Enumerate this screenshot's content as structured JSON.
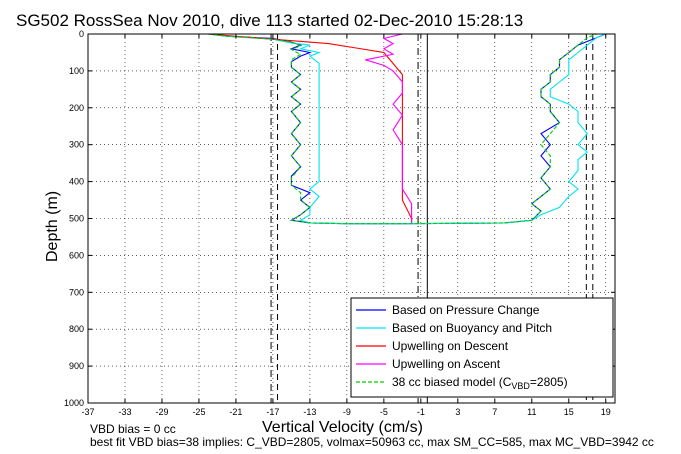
{
  "chart_data": {
    "type": "line",
    "title": "SG502 RossSea Nov 2010, dive 113 started 02-Dec-2010 15:28:13",
    "xlabel": "Vertical Velocity (cm/s)",
    "ylabel": "Depth (m)",
    "xlim": [
      -37,
      20
    ],
    "ylim": [
      1000,
      0
    ],
    "y_reversed": true,
    "grid": true,
    "xticks": [
      -37,
      -33,
      -29,
      -25,
      -21,
      -17,
      -13,
      -9,
      -5,
      -1,
      3,
      7,
      11,
      15,
      19
    ],
    "yticks": [
      0,
      100,
      200,
      300,
      400,
      500,
      600,
      700,
      800,
      900,
      1000
    ],
    "legend_position": "bottom-right",
    "series": [
      {
        "name": "Based on Pressure Change",
        "color": "#0000ff",
        "points": [
          [
            -24,
            0
          ],
          [
            -22,
            6
          ],
          [
            -17,
            12
          ],
          [
            -15,
            22
          ],
          [
            -14,
            30
          ],
          [
            -15,
            40
          ],
          [
            -13,
            50
          ],
          [
            -14,
            60
          ],
          [
            -15,
            75
          ],
          [
            -15,
            90
          ],
          [
            -14,
            110
          ],
          [
            -15,
            130
          ],
          [
            -14,
            150
          ],
          [
            -15,
            170
          ],
          [
            -14,
            190
          ],
          [
            -15,
            210
          ],
          [
            -14,
            240
          ],
          [
            -15,
            270
          ],
          [
            -14,
            300
          ],
          [
            -15,
            330
          ],
          [
            -14,
            360
          ],
          [
            -15,
            385
          ],
          [
            -15,
            410
          ],
          [
            -13,
            430
          ],
          [
            -14,
            450
          ],
          [
            -13,
            470
          ],
          [
            -14,
            490
          ],
          [
            -15,
            505
          ],
          [
            -13,
            512
          ],
          [
            -9,
            514
          ],
          [
            -3,
            514
          ],
          [
            3,
            513
          ],
          [
            8,
            512
          ],
          [
            11,
            505
          ],
          [
            12,
            480
          ],
          [
            11,
            460
          ],
          [
            12,
            440
          ],
          [
            13,
            420
          ],
          [
            12,
            390
          ],
          [
            13,
            360
          ],
          [
            12,
            330
          ],
          [
            13,
            300
          ],
          [
            12,
            270
          ],
          [
            14,
            240
          ],
          [
            13,
            210
          ],
          [
            13,
            190
          ],
          [
            12,
            170
          ],
          [
            12,
            150
          ],
          [
            13,
            130
          ],
          [
            13,
            110
          ],
          [
            14,
            90
          ],
          [
            14,
            70
          ],
          [
            15,
            50
          ],
          [
            16,
            30
          ],
          [
            18,
            10
          ],
          [
            19,
            0
          ]
        ]
      },
      {
        "name": "Based on Buoyancy and Pitch",
        "color": "#00e5ee",
        "points": [
          [
            -24,
            0
          ],
          [
            -22,
            6
          ],
          [
            -17,
            14
          ],
          [
            -15,
            24
          ],
          [
            -13,
            30
          ],
          [
            -14,
            40
          ],
          [
            -12,
            50
          ],
          [
            -13,
            60
          ],
          [
            -12,
            80
          ],
          [
            -12,
            100
          ],
          [
            -12,
            130
          ],
          [
            -12,
            160
          ],
          [
            -12,
            190
          ],
          [
            -12,
            220
          ],
          [
            -12,
            260
          ],
          [
            -12,
            300
          ],
          [
            -12,
            340
          ],
          [
            -12,
            370
          ],
          [
            -12,
            400
          ],
          [
            -13,
            420
          ],
          [
            -12,
            440
          ],
          [
            -13,
            470
          ],
          [
            -13,
            490
          ],
          [
            -14,
            505
          ],
          [
            -13,
            512
          ],
          [
            -9,
            514
          ],
          [
            -3,
            514
          ],
          [
            3,
            513
          ],
          [
            8,
            512
          ],
          [
            11,
            505
          ],
          [
            12,
            490
          ],
          [
            14,
            470
          ],
          [
            15,
            440
          ],
          [
            16,
            420
          ],
          [
            15,
            400
          ],
          [
            16,
            370
          ],
          [
            16,
            340
          ],
          [
            17,
            320
          ],
          [
            16,
            300
          ],
          [
            17,
            270
          ],
          [
            16,
            240
          ],
          [
            16,
            210
          ],
          [
            15,
            190
          ],
          [
            13,
            170
          ],
          [
            13,
            150
          ],
          [
            14,
            130
          ],
          [
            15,
            110
          ],
          [
            15,
            90
          ],
          [
            15,
            70
          ],
          [
            16,
            50
          ],
          [
            17,
            30
          ],
          [
            18,
            10
          ],
          [
            19,
            0
          ]
        ]
      },
      {
        "name": "Upwelling on Descent",
        "color": "#ff0000",
        "points": [
          [
            -24,
            0
          ],
          [
            -20,
            8
          ],
          [
            -16,
            16
          ],
          [
            -11,
            26
          ],
          [
            -8,
            38
          ],
          [
            -5,
            50
          ],
          [
            -4,
            80
          ],
          [
            -3,
            110
          ],
          [
            -3,
            150
          ],
          [
            -3,
            200
          ],
          [
            -3,
            250
          ],
          [
            -3,
            300
          ],
          [
            -3,
            350
          ],
          [
            -3,
            400
          ],
          [
            -3,
            450
          ],
          [
            -2,
            500
          ],
          [
            -2,
            512
          ]
        ]
      },
      {
        "name": "Upwelling on Ascent",
        "color": "#ff00ff",
        "points": [
          [
            -3,
            0
          ],
          [
            -5,
            12
          ],
          [
            -4,
            26
          ],
          [
            -5,
            40
          ],
          [
            -4,
            55
          ],
          [
            -7,
            70
          ],
          [
            -5,
            85
          ],
          [
            -4,
            100
          ],
          [
            -3,
            130
          ],
          [
            -3,
            160
          ],
          [
            -4,
            190
          ],
          [
            -3,
            220
          ],
          [
            -4,
            260
          ],
          [
            -3,
            300
          ],
          [
            -3,
            340
          ],
          [
            -3,
            380
          ],
          [
            -3,
            420
          ],
          [
            -2,
            460
          ],
          [
            -2,
            500
          ],
          [
            -2,
            512
          ]
        ]
      },
      {
        "name": "38 cc biased model (C_VBD=2805)",
        "legend_prefix": "38 cc biased model (C",
        "legend_sub": "VBD",
        "legend_suffix": "=2805)",
        "color": "#00cc00",
        "dashed": true,
        "points": [
          [
            -24,
            0
          ],
          [
            -22,
            6
          ],
          [
            -17,
            14
          ],
          [
            -15,
            22
          ],
          [
            -14,
            32
          ],
          [
            -15,
            42
          ],
          [
            -14,
            55
          ],
          [
            -15,
            70
          ],
          [
            -15,
            90
          ],
          [
            -14,
            110
          ],
          [
            -15,
            130
          ],
          [
            -14,
            150
          ],
          [
            -15,
            170
          ],
          [
            -14,
            190
          ],
          [
            -15,
            210
          ],
          [
            -14,
            240
          ],
          [
            -15,
            270
          ],
          [
            -14,
            300
          ],
          [
            -15,
            330
          ],
          [
            -14,
            360
          ],
          [
            -15,
            390
          ],
          [
            -15,
            410
          ],
          [
            -14,
            430
          ],
          [
            -14,
            450
          ],
          [
            -13,
            470
          ],
          [
            -14,
            490
          ],
          [
            -15,
            505
          ],
          [
            -13,
            512
          ],
          [
            -9,
            514
          ],
          [
            -3,
            514
          ],
          [
            3,
            513
          ],
          [
            8,
            512
          ],
          [
            11,
            505
          ],
          [
            12,
            480
          ],
          [
            11,
            460
          ],
          [
            12,
            440
          ],
          [
            13,
            420
          ],
          [
            12,
            390
          ],
          [
            13,
            360
          ],
          [
            13,
            330
          ],
          [
            12,
            300
          ],
          [
            13,
            270
          ],
          [
            14,
            240
          ],
          [
            13,
            210
          ],
          [
            13,
            190
          ],
          [
            12,
            170
          ],
          [
            12,
            150
          ],
          [
            13,
            130
          ],
          [
            13,
            110
          ],
          [
            14,
            90
          ],
          [
            14,
            70
          ],
          [
            15,
            50
          ],
          [
            16,
            30
          ],
          [
            17,
            10
          ],
          [
            18,
            0
          ]
        ]
      }
    ],
    "reference_lines": [
      {
        "x": -17.2,
        "style": "dashdot",
        "color": "#000000"
      },
      {
        "x": -16.5,
        "style": "dashed",
        "color": "#000000"
      },
      {
        "x": -0.3,
        "style": "solid",
        "color": "#000000"
      },
      {
        "x": -1.3,
        "style": "dashdot",
        "color": "#000000"
      },
      {
        "x": 16.9,
        "style": "dashed",
        "color": "#000000"
      },
      {
        "x": 17.6,
        "style": "dashed",
        "color": "#000000"
      }
    ],
    "footer_lines": [
      "VBD bias = 0 cc",
      "best fit VBD bias=38 implies: C_VBD=2805, volmax=50963 cc, max SM_CC=585, max MC_VBD=3942 cc"
    ]
  }
}
